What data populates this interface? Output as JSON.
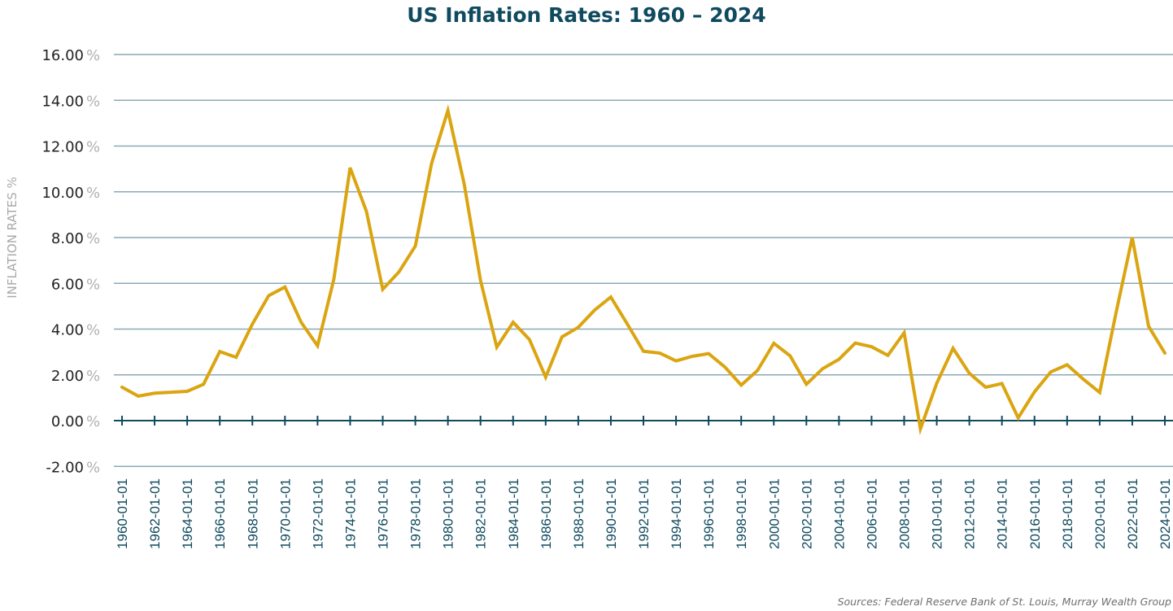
{
  "chart_data": {
    "type": "line",
    "title": "US Inflation Rates: 1960 – 2024",
    "xlabel": "",
    "ylabel": "INFLATION RATES %",
    "ylim": [
      -2,
      16
    ],
    "yticks": [
      16,
      14,
      12,
      10,
      8,
      6,
      4,
      2,
      0,
      -2
    ],
    "ytick_labels": [
      "16.00",
      "14.00",
      "12.00",
      "10.00",
      "8.00",
      "6.00",
      "4.00",
      "2.00",
      "0.00",
      "-2.00"
    ],
    "ytick_suffix": "%",
    "grid": true,
    "xtick_labels": [
      "1960-01-01",
      "1962-01-01",
      "1964-01-01",
      "1966-01-01",
      "1968-01-01",
      "1970-01-01",
      "1972-01-01",
      "1974-01-01",
      "1976-01-01",
      "1978-01-01",
      "1980-01-01",
      "1982-01-01",
      "1984-01-01",
      "1986-01-01",
      "1988-01-01",
      "1990-01-01",
      "1992-01-01",
      "1994-01-01",
      "1996-01-01",
      "1998-01-01",
      "2000-01-01",
      "2002-01-01",
      "2004-01-01",
      "2006-01-01",
      "2008-01-01",
      "2010-01-01",
      "2012-01-01",
      "2014-01-01",
      "2016-01-01",
      "2018-01-01",
      "2020-01-01",
      "2022-01-01",
      "2024-01-01"
    ],
    "x": [
      1960,
      1961,
      1962,
      1963,
      1964,
      1965,
      1966,
      1967,
      1968,
      1969,
      1970,
      1971,
      1972,
      1973,
      1974,
      1975,
      1976,
      1977,
      1978,
      1979,
      1980,
      1981,
      1982,
      1983,
      1984,
      1985,
      1986,
      1987,
      1988,
      1989,
      1990,
      1991,
      1992,
      1993,
      1994,
      1995,
      1996,
      1997,
      1998,
      1999,
      2000,
      2001,
      2002,
      2003,
      2004,
      2005,
      2006,
      2007,
      2008,
      2009,
      2010,
      2011,
      2012,
      2013,
      2014,
      2015,
      2016,
      2017,
      2018,
      2019,
      2020,
      2021,
      2022,
      2023,
      2024
    ],
    "series": [
      {
        "name": "Inflation Rate",
        "color": "#dba511",
        "values": [
          1.46,
          1.07,
          1.2,
          1.24,
          1.28,
          1.59,
          3.02,
          2.77,
          4.22,
          5.46,
          5.84,
          4.29,
          3.27,
          6.18,
          11.05,
          9.14,
          5.74,
          6.5,
          7.63,
          11.25,
          13.55,
          10.33,
          6.13,
          3.21,
          4.3,
          3.55,
          1.9,
          3.66,
          4.08,
          4.83,
          5.4,
          4.23,
          3.03,
          2.95,
          2.61,
          2.81,
          2.93,
          2.34,
          1.55,
          2.19,
          3.38,
          2.83,
          1.59,
          2.27,
          2.68,
          3.39,
          3.23,
          2.85,
          3.84,
          -0.36,
          1.64,
          3.16,
          2.07,
          1.46,
          1.62,
          0.12,
          1.26,
          2.13,
          2.44,
          1.81,
          1.23,
          4.7,
          8.0,
          4.12,
          2.95
        ]
      }
    ],
    "source": "Sources: Federal Reserve Bank of St. Louis, Murray Wealth Group",
    "colors": {
      "title": "#0f4a5e",
      "grid": "#8aa9b8",
      "axis": "#0f4a5e",
      "line": "#dba511"
    }
  }
}
